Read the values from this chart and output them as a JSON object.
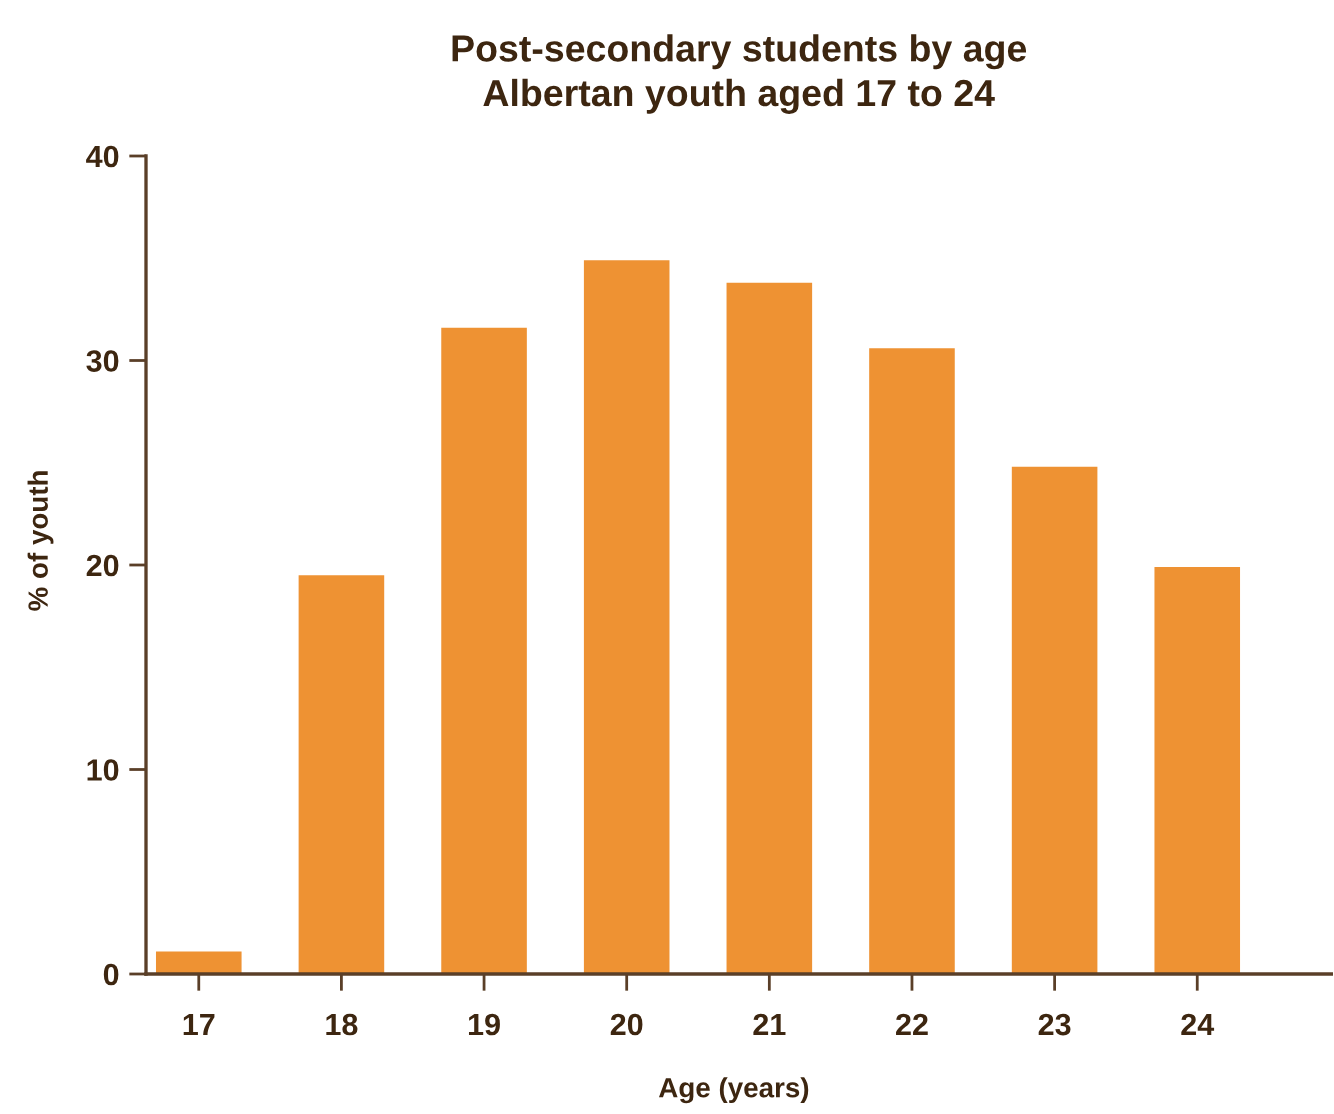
{
  "chart_data": {
    "type": "bar",
    "title": "Post-secondary students by age\nAlbertan youth aged 17 to 24",
    "xlabel": "Age (years)",
    "ylabel": "% of youth",
    "categories": [
      "17",
      "18",
      "19",
      "20",
      "21",
      "22",
      "23",
      "24"
    ],
    "values": [
      1.1,
      19.5,
      31.6,
      34.9,
      33.8,
      30.6,
      24.8,
      19.9
    ],
    "color": "#ee9233",
    "ylim": [
      0,
      40
    ],
    "yticks": [
      0,
      10,
      20,
      30,
      40
    ]
  }
}
